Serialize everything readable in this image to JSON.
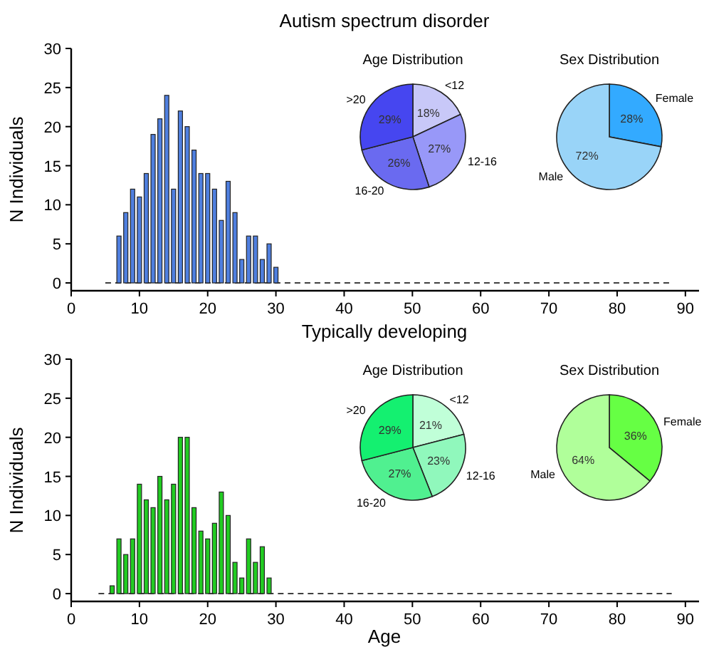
{
  "chart_data": [
    {
      "type": "bar",
      "title": "Autism spectrum disorder",
      "ylabel": "N Individuals",
      "color": "#4f7fdf",
      "x": [
        7,
        8,
        9,
        10,
        11,
        12,
        13,
        14,
        15,
        16,
        17,
        18,
        19,
        20,
        21,
        22,
        23,
        24,
        25,
        26,
        27,
        28,
        29,
        30
      ],
      "values": [
        6,
        9,
        12,
        11,
        14,
        19,
        21,
        24,
        12,
        22,
        20,
        17,
        14,
        14,
        12,
        8,
        13,
        9,
        3,
        6,
        6,
        3,
        5,
        2
      ],
      "xlim": [
        0,
        92
      ],
      "ylim": [
        -1,
        30
      ],
      "xticks": [
        0,
        10,
        20,
        30,
        40,
        50,
        60,
        70,
        80,
        90
      ],
      "yticks": [
        0,
        5,
        10,
        15,
        20,
        25,
        30
      ],
      "ref_lines": [
        {
          "axis": "y",
          "value": 0,
          "line_style": "dashed"
        }
      ]
    },
    {
      "type": "pie",
      "title": "Age Distribution",
      "categories": [
        "<12",
        "12-16",
        "16-20",
        ">20"
      ],
      "values": [
        18,
        27,
        26,
        29
      ],
      "colors": [
        "#c8c8f8",
        "#9898f8",
        "#6a6af0",
        "#4646f0"
      ],
      "value_labels": [
        "18%",
        "27%",
        "26%",
        "29%"
      ]
    },
    {
      "type": "pie",
      "title": "Sex Distribution",
      "categories": [
        "Female",
        "Male"
      ],
      "values": [
        28,
        72
      ],
      "colors": [
        "#33aaff",
        "#99d4f8"
      ],
      "value_labels": [
        "28%",
        "72%"
      ]
    },
    {
      "type": "bar",
      "title": "Typically developing",
      "ylabel": "N Individuals",
      "xlabel": "Age",
      "color": "#22cc22",
      "x": [
        6,
        7,
        8,
        9,
        10,
        11,
        12,
        13,
        14,
        15,
        16,
        17,
        18,
        19,
        20,
        21,
        22,
        23,
        24,
        25,
        26,
        27,
        28,
        29
      ],
      "values": [
        1,
        7,
        5,
        7,
        14,
        12,
        11,
        15,
        12,
        14,
        20,
        20,
        11,
        8,
        7,
        9,
        13,
        10,
        4,
        2,
        7,
        4,
        6,
        2
      ],
      "xlim": [
        0,
        92
      ],
      "ylim": [
        -1,
        30
      ],
      "xticks": [
        0,
        10,
        20,
        30,
        40,
        50,
        60,
        70,
        80,
        90
      ],
      "yticks": [
        0,
        5,
        10,
        15,
        20,
        25,
        30
      ],
      "ref_lines": [
        {
          "axis": "y",
          "value": 0,
          "line_style": "dashed"
        }
      ]
    },
    {
      "type": "pie",
      "title": "Age Distribution",
      "categories": [
        "<12",
        "12-16",
        "16-20",
        ">20"
      ],
      "values": [
        21,
        23,
        27,
        29
      ],
      "colors": [
        "#c0ffd8",
        "#90f8bc",
        "#50f090",
        "#14f070"
      ],
      "value_labels": [
        "21%",
        "23%",
        "27%",
        "29%"
      ]
    },
    {
      "type": "pie",
      "title": "Sex Distribution",
      "categories": [
        "Female",
        "Male"
      ],
      "values": [
        36,
        64
      ],
      "colors": [
        "#66ff44",
        "#b0ff9a"
      ],
      "value_labels": [
        "36%",
        "64%"
      ]
    }
  ]
}
